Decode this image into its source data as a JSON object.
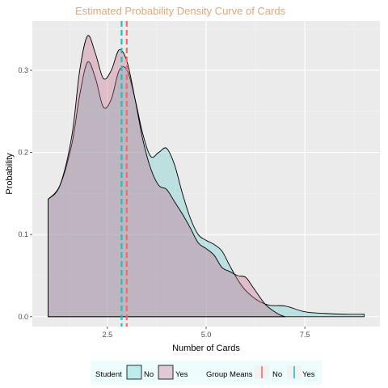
{
  "chart_data": {
    "type": "area",
    "title": "Estimated Probability Density Curve of Cards",
    "xlabel": "Number of Cards",
    "ylabel": "Probability",
    "xlim": [
      0.6,
      9.4
    ],
    "ylim": [
      -0.012,
      0.36
    ],
    "x_ticks": [
      2.5,
      5.0,
      7.5
    ],
    "x_tick_labels": [
      "2.5",
      "5.0",
      "7.5"
    ],
    "y_ticks": [
      0.0,
      0.1,
      0.2,
      0.3
    ],
    "y_tick_labels": [
      "0.0",
      "0.1",
      "0.2",
      "0.3"
    ],
    "grid": true,
    "legend_position": "bottom",
    "colors": {
      "title": "#E0A77A",
      "panel": "#EBEBEB",
      "grid_major": "#FFFFFF",
      "grid_minor": "#F5F5F5",
      "no": "#19C2C2",
      "yes": "#F26B6B",
      "no_fill": "rgba(104, 205, 205, 0.36)",
      "yes_fill": "rgba(192, 100, 132, 0.34)",
      "legend_bg": "#EDFDFD"
    },
    "series": [
      {
        "group": "No",
        "x": [
          1.0,
          1.3,
          1.6,
          1.8,
          2.0,
          2.2,
          2.4,
          2.6,
          2.8,
          3.0,
          3.2,
          3.4,
          3.6,
          3.8,
          4.0,
          4.2,
          4.4,
          4.6,
          4.8,
          5.0,
          5.2,
          5.4,
          5.6,
          5.8,
          6.0,
          6.3,
          6.6,
          7.0,
          7.5,
          8.0,
          8.5,
          9.0
        ],
        "y": [
          0.143,
          0.16,
          0.21,
          0.27,
          0.31,
          0.29,
          0.255,
          0.265,
          0.3,
          0.3,
          0.265,
          0.222,
          0.195,
          0.2,
          0.205,
          0.185,
          0.15,
          0.12,
          0.1,
          0.093,
          0.088,
          0.08,
          0.062,
          0.045,
          0.032,
          0.02,
          0.014,
          0.013,
          0.006,
          0.004,
          0.003,
          0.003
        ]
      },
      {
        "group": "Yes",
        "x": [
          1.0,
          1.3,
          1.6,
          1.8,
          2.0,
          2.2,
          2.4,
          2.6,
          2.8,
          3.0,
          3.2,
          3.4,
          3.6,
          3.8,
          4.0,
          4.2,
          4.4,
          4.6,
          4.8,
          5.0,
          5.2,
          5.4,
          5.6,
          5.8,
          6.0,
          6.2,
          6.5,
          6.8,
          7.0
        ],
        "y": [
          0.143,
          0.16,
          0.22,
          0.3,
          0.342,
          0.32,
          0.29,
          0.3,
          0.325,
          0.31,
          0.265,
          0.215,
          0.18,
          0.16,
          0.155,
          0.14,
          0.125,
          0.108,
          0.09,
          0.083,
          0.075,
          0.06,
          0.055,
          0.05,
          0.048,
          0.035,
          0.015,
          0.004,
          0.0
        ]
      }
    ],
    "group_means": [
      {
        "group": "No",
        "x": 2.99
      },
      {
        "group": "Yes",
        "x": 2.86
      }
    ],
    "legend": {
      "fill_title": "Student",
      "fill_items": [
        "No",
        "Yes"
      ],
      "mean_title": "Group Means",
      "mean_items": [
        "No",
        "Yes"
      ]
    }
  }
}
